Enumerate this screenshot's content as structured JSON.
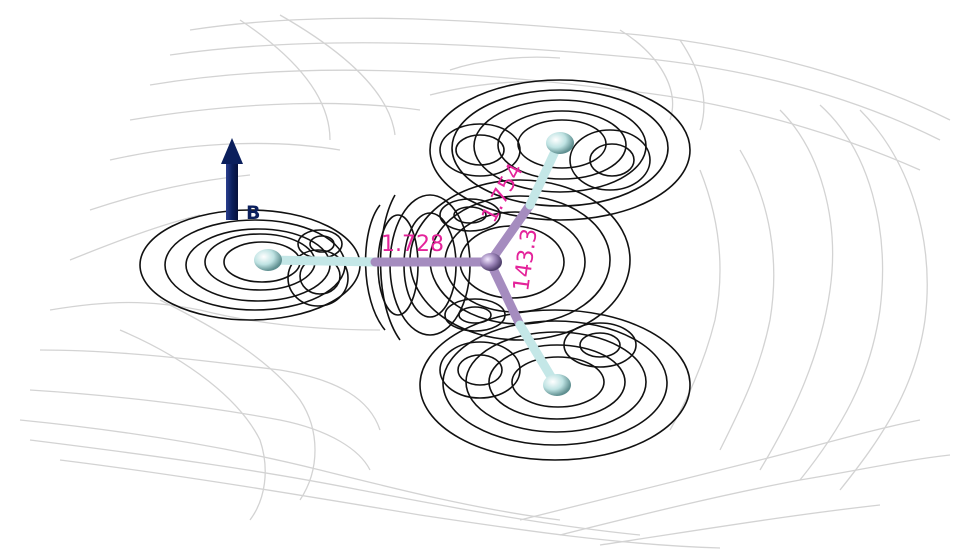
{
  "figure": {
    "field_label": "B",
    "bond_lengths": {
      "horizontal": "1.728",
      "upper_right": "1.754"
    },
    "bond_angle": "143.3",
    "colors": {
      "background": "#ffffff",
      "streamline_near": "#111111",
      "streamline_far": "#cfcfcf",
      "field_arrow": "#0b1f5c",
      "label": "#e4239a",
      "central_atom": "#9b84b8",
      "terminal_atom": "#bfe3e3",
      "bond_center": "#a58cbf",
      "bond_terminal": "#c4e7e7"
    }
  }
}
